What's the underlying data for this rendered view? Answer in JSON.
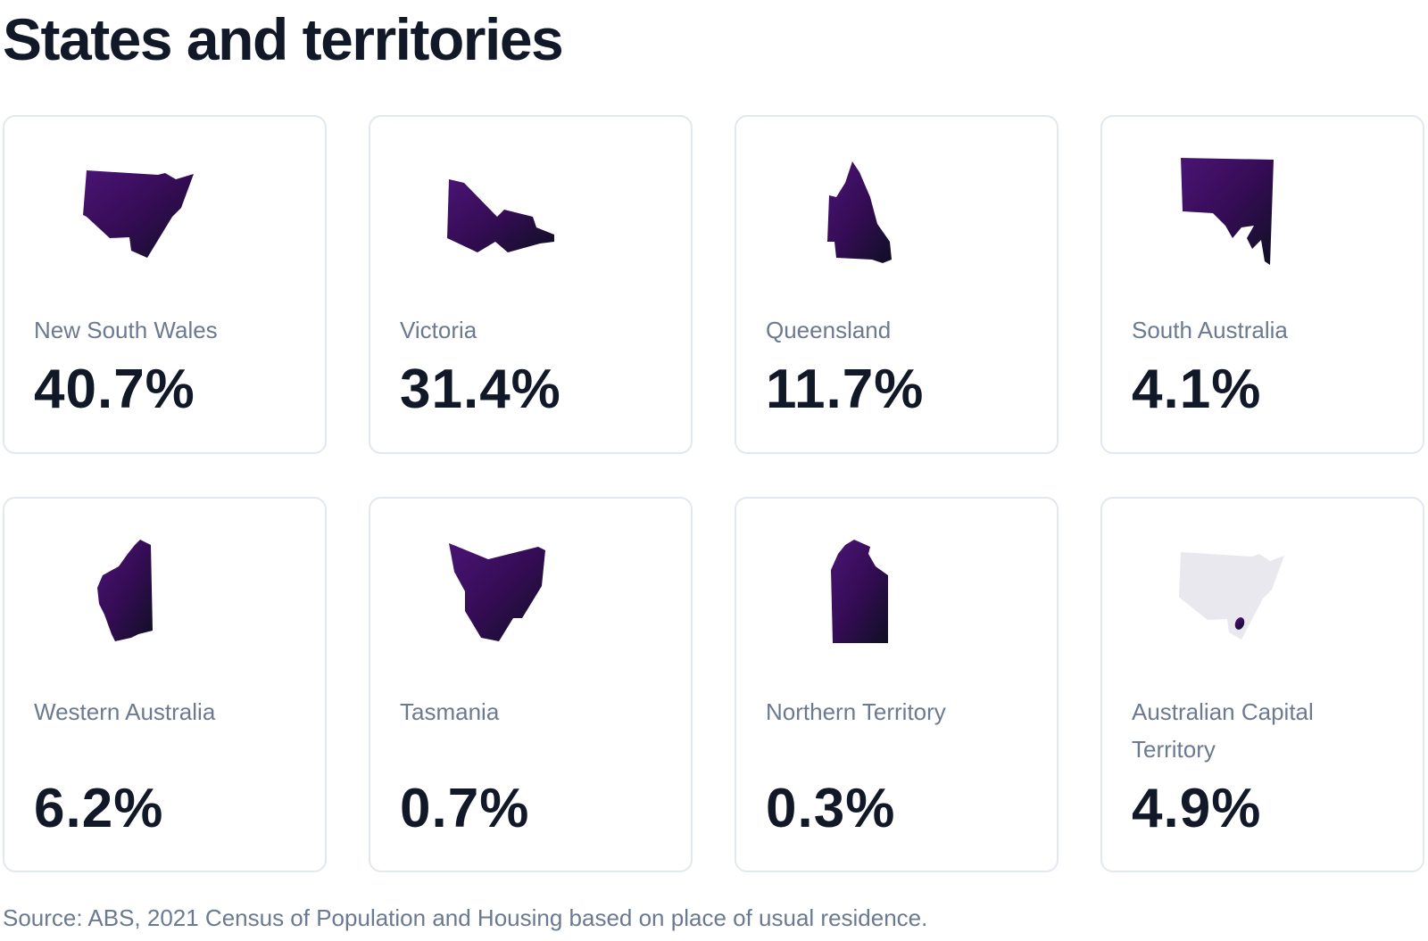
{
  "title": "States and territories",
  "colors": {
    "map_start": "#4a1475",
    "map_end": "#0f0f24",
    "map_inactive": "#e8e8ee"
  },
  "states": [
    {
      "name": "New South Wales",
      "value": "40.7%",
      "icon": "nsw-map-icon"
    },
    {
      "name": "Victoria",
      "value": "31.4%",
      "icon": "victoria-map-icon"
    },
    {
      "name": "Queensland",
      "value": "11.7%",
      "icon": "queensland-map-icon"
    },
    {
      "name": "South Australia",
      "value": "4.1%",
      "icon": "south-australia-map-icon"
    },
    {
      "name": "Western Australia",
      "value": "6.2%",
      "icon": "western-australia-map-icon"
    },
    {
      "name": "Tasmania",
      "value": "0.7%",
      "icon": "tasmania-map-icon"
    },
    {
      "name": "Northern Territory",
      "value": "0.3%",
      "icon": "northern-territory-map-icon"
    },
    {
      "name": "Australian Capital Territory",
      "value": "4.9%",
      "icon": "act-map-icon"
    }
  ],
  "source": "Source: ABS, 2021 Census of Population and Housing based on place of usual residence."
}
